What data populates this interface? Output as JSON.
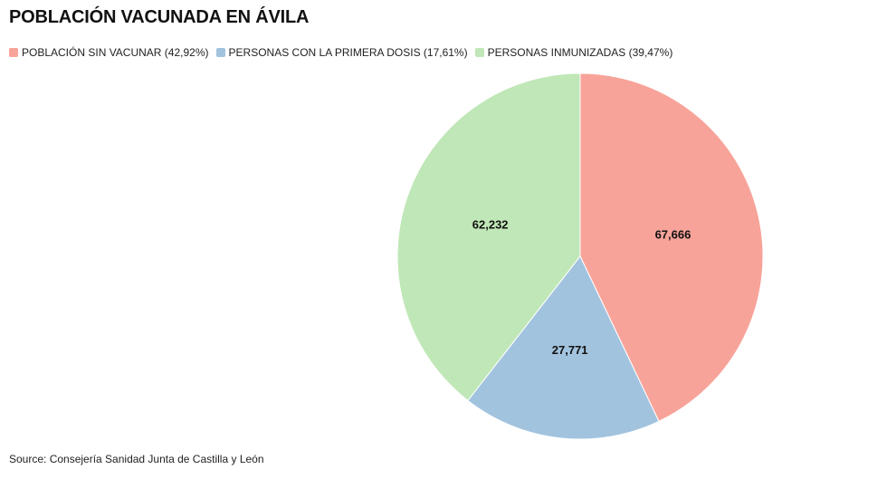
{
  "chart_data": {
    "type": "pie",
    "title": "POBLACIÓN VACUNADA EN ÁVILA",
    "categories": [
      "POBLACIÓN SIN VACUNAR (42,92%)",
      "PERSONAS CON LA PRIMERA DOSIS (17,61%)",
      "PERSONAS INMUNIZADAS (39,47%)"
    ],
    "values": [
      67666,
      27771,
      62232
    ],
    "value_labels": [
      "67,666",
      "27,771",
      "62,232"
    ],
    "colors": [
      "#f8a399",
      "#a2c3de",
      "#c0e7b7"
    ],
    "legend_position": "top-left",
    "start_angle": "12 o'clock, clockwise"
  },
  "source": "Source: Consejería Sanidad Junta de Castilla y León"
}
